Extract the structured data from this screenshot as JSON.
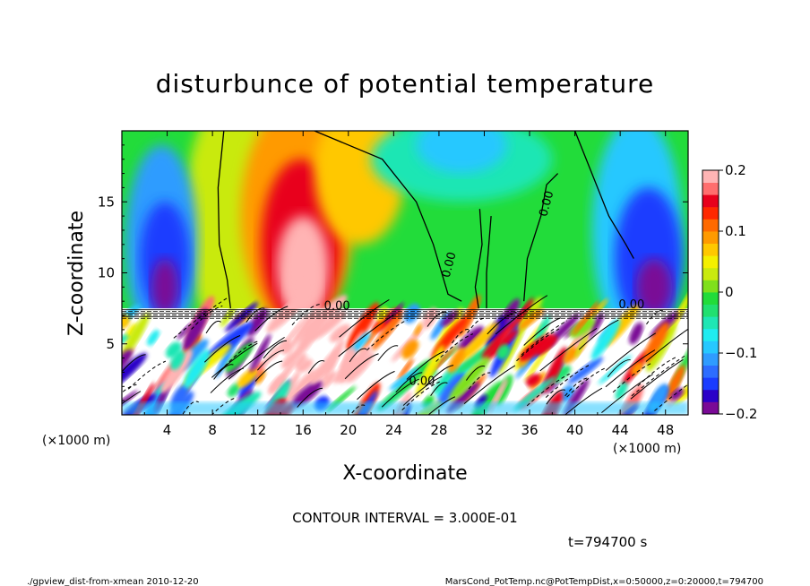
{
  "chart_data": {
    "type": "heatmap",
    "title": "disturbunce of potential temperature",
    "xlabel": "X-coordinate",
    "ylabel": "Z-coordinate",
    "x_unit": "(×1000 m)",
    "y_unit": "(×1000 m)",
    "xlim": [
      0,
      50
    ],
    "ylim": [
      0,
      20
    ],
    "x_ticks": [
      "4",
      "8",
      "12",
      "16",
      "20",
      "24",
      "28",
      "32",
      "36",
      "40",
      "44",
      "48"
    ],
    "x_tick_values": [
      4,
      8,
      12,
      16,
      20,
      24,
      28,
      32,
      36,
      40,
      44,
      48
    ],
    "y_ticks": [
      "5",
      "10",
      "15"
    ],
    "y_tick_values": [
      5,
      10,
      15
    ],
    "colorbar": {
      "range": [
        -0.2,
        0.2
      ],
      "tick_labels": [
        "0.2",
        "0.1",
        "0",
        "−0.1",
        "−0.2"
      ],
      "tick_values": [
        0.2,
        0.1,
        0,
        -0.1,
        -0.2
      ],
      "colors": [
        "#7a0a96",
        "#2b00c8",
        "#1a3cff",
        "#2d6dff",
        "#2f9cff",
        "#26c8ff",
        "#20ecf0",
        "#1fe6b4",
        "#21e070",
        "#22dc3a",
        "#7fe01c",
        "#c9ea0e",
        "#f4f000",
        "#ffc800",
        "#ff9a00",
        "#ff6a00",
        "#ff2800",
        "#e8001c",
        "#ff6e6e",
        "#ffb4b4"
      ]
    },
    "contour_labels": [
      "0.00",
      "0.00",
      "0.00",
      "0.00",
      "0.00"
    ],
    "contour_interval_text": "CONTOUR INTERVAL = 3.000E-01",
    "time_text": "t=794700  s"
  },
  "footer": {
    "left": "./gpview_dist-from-xmean  2010-12-20",
    "right": "MarsCond_PotTemp.nc@PotTempDist,x=0:50000,z=0:20000,t=794700"
  }
}
